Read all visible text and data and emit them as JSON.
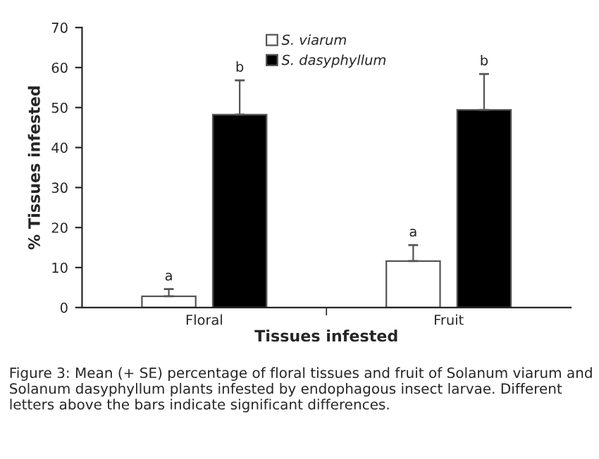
{
  "chart_data": {
    "type": "bar",
    "categories": [
      "Floral",
      "Fruit"
    ],
    "series": [
      {
        "name": "S. viarum",
        "color": "#ffffff",
        "values": [
          2.8,
          11.6
        ],
        "errors": [
          [
            2.8,
            4.6
          ],
          [
            11.6,
            15.6
          ]
        ]
      },
      {
        "name": "S. dasyphyllum",
        "color": "#000000",
        "values": [
          48.2,
          49.4
        ],
        "errors": [
          [
            48.2,
            56.8
          ],
          [
            49.4,
            58.4
          ]
        ]
      }
    ],
    "ylim": [
      0,
      70
    ],
    "yticks": [
      0,
      10,
      20,
      30,
      40,
      50,
      60,
      70
    ],
    "xlabel": "Tissues infested",
    "ylabel": "% Tissues infested",
    "legend": "top",
    "grid": false,
    "annotations": [
      "a",
      "b",
      "a",
      "b",
      "Figure 3: Mean (+ SE) percentage of floral tissues and fruit of Solanum viarum and Solanum dasyphyllum plants infested by endophagous insect larvae. Different letters above the bars indicate significant differences."
    ]
  }
}
